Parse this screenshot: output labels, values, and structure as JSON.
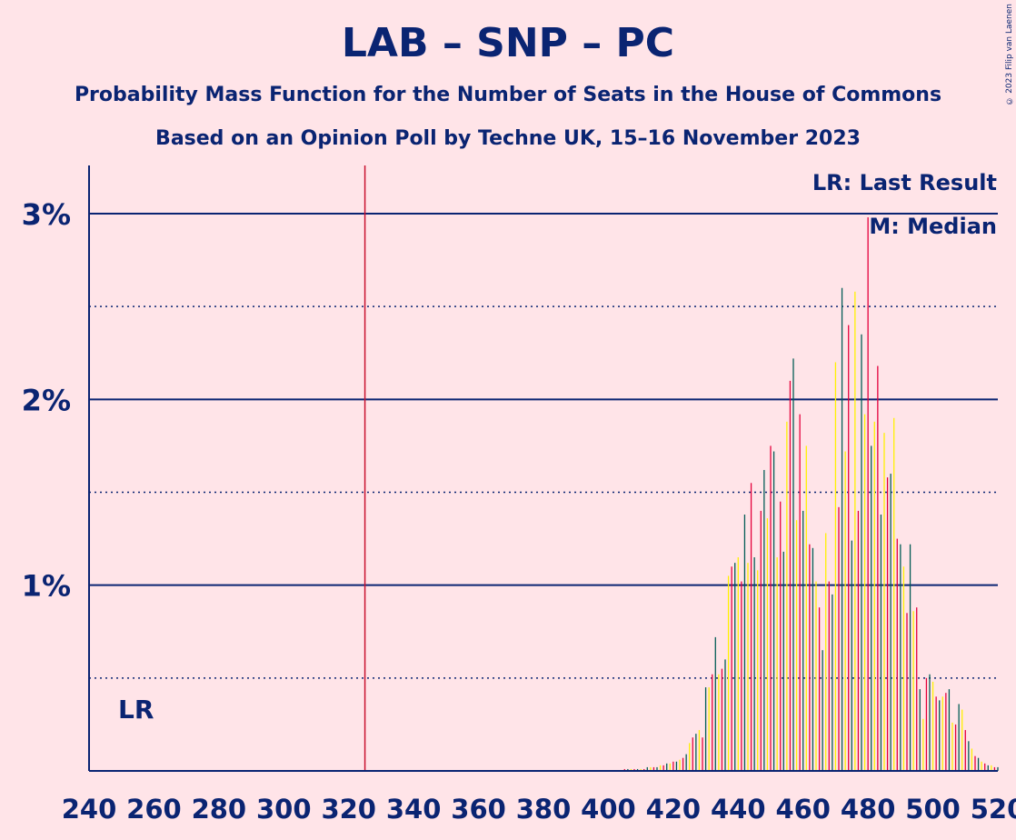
{
  "title": "LAB – SNP – PC",
  "subtitle": "Probability Mass Function for the Number of Seats in the House of Commons",
  "subtitle2": "Based on an Opinion Poll by Techne UK, 15–16 November 2023",
  "copyright": "© 2023 Filip van Laenen",
  "legend": {
    "lr": "LR: Last Result",
    "median": "M: Median"
  },
  "lr_label": "LR",
  "colors": {
    "background": "#FFE4E8",
    "axis": "#0A2472",
    "bar_main": "#E4003B",
    "bar_alt": "#FFF200",
    "bar_third": "#005B54",
    "last_result_line": "#C8102E"
  },
  "chart_data": {
    "type": "bar",
    "xlabel": "",
    "ylabel": "",
    "xlim": [
      240,
      520
    ],
    "ylim": [
      0,
      3.25
    ],
    "x_ticks": [
      "240",
      "260",
      "280",
      "300",
      "320",
      "340",
      "360",
      "380",
      "400",
      "420",
      "440",
      "460",
      "480",
      "500",
      "520"
    ],
    "y_ticks": [
      {
        "value": 1,
        "label": "1%"
      },
      {
        "value": 2,
        "label": "2%"
      },
      {
        "value": 3,
        "label": "3%"
      }
    ],
    "last_result": 325,
    "median": 480,
    "series": [
      {
        "x": [
          405,
          406,
          407,
          408,
          409,
          410,
          411,
          412,
          413,
          414,
          415,
          416,
          417,
          418,
          419,
          420,
          421,
          422,
          423,
          424,
          425,
          426,
          427,
          428,
          429,
          430,
          431,
          432,
          433,
          434,
          435,
          436,
          437,
          438,
          439,
          440,
          441,
          442,
          443,
          444,
          445,
          446,
          447,
          448,
          449,
          450,
          451,
          452,
          453,
          454,
          455,
          456,
          457,
          458,
          459,
          460,
          461,
          462,
          463,
          464,
          465,
          466,
          467,
          468,
          469,
          470,
          471,
          472,
          473,
          474,
          475,
          476,
          477,
          478,
          479,
          480,
          481,
          482,
          483,
          484,
          485,
          486,
          487,
          488,
          489,
          490,
          491,
          492,
          493,
          494,
          495,
          496,
          497,
          498,
          499,
          500,
          501,
          502,
          503,
          504,
          505,
          506,
          507,
          508,
          509,
          510,
          511,
          512,
          513,
          514,
          515,
          516,
          517,
          518,
          519,
          520
        ],
        "values": [
          0.01,
          0.01,
          0.01,
          0.01,
          0.01,
          0.01,
          0.01,
          0.02,
          0.02,
          0.02,
          0.02,
          0.03,
          0.03,
          0.04,
          0.04,
          0.05,
          0.05,
          0.06,
          0.07,
          0.09,
          0.15,
          0.18,
          0.2,
          0.22,
          0.18,
          0.45,
          0.45,
          0.52,
          0.72,
          0.52,
          0.55,
          0.6,
          1.05,
          1.1,
          1.12,
          1.15,
          1.02,
          1.38,
          1.12,
          1.55,
          1.15,
          1.08,
          1.4,
          1.62,
          1.36,
          1.75,
          1.72,
          1.15,
          1.45,
          1.18,
          1.88,
          2.1,
          2.22,
          1.35,
          1.92,
          1.4,
          1.75,
          1.22,
          1.2,
          1.02,
          0.88,
          0.65,
          1.28,
          1.02,
          0.95,
          2.2,
          1.42,
          2.6,
          1.72,
          2.4,
          1.24,
          2.58,
          1.4,
          2.35,
          1.92,
          2.98,
          1.75,
          1.88,
          2.18,
          1.38,
          1.82,
          1.58,
          1.6,
          1.9,
          1.25,
          1.22,
          1.1,
          0.85,
          1.22,
          0.86,
          0.88,
          0.44,
          0.28,
          0.5,
          0.52,
          0.48,
          0.4,
          0.38,
          0.4,
          0.42,
          0.44,
          0.26,
          0.25,
          0.36,
          0.33,
          0.22,
          0.16,
          0.12,
          0.08,
          0.07,
          0.05,
          0.04,
          0.03,
          0.03,
          0.02,
          0.02
        ]
      }
    ]
  }
}
